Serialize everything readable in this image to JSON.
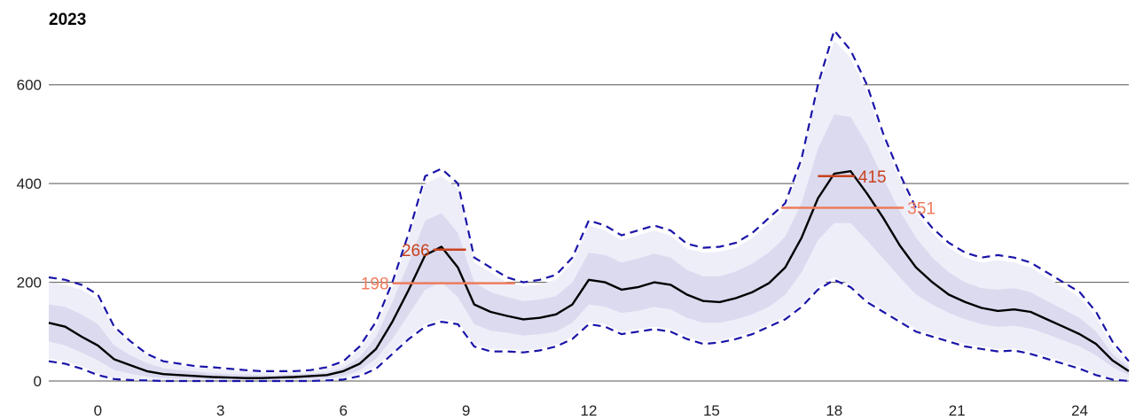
{
  "chart_data": {
    "type": "line",
    "title": "2023",
    "xlabel": "",
    "ylabel": "",
    "xlim": [
      -1.2,
      25.2
    ],
    "ylim": [
      0,
      700
    ],
    "x_ticks": [
      0,
      3,
      6,
      9,
      12,
      15,
      18,
      21,
      24
    ],
    "y_ticks": [
      0,
      200,
      400,
      600
    ],
    "grid": "horizontal",
    "legend": "none",
    "colors": {
      "median": "#000000",
      "outer_band": "#eeeef9",
      "inner_band": "#dcdaef",
      "dashed_bounds": "#1a14a8",
      "annotation_dark": "#c8411c",
      "annotation_light": "#ef7b5c"
    },
    "x": [
      -1.2,
      -0.8,
      -0.4,
      0,
      0.4,
      0.8,
      1.2,
      1.6,
      2,
      2.4,
      2.8,
      3.2,
      3.6,
      4,
      4.4,
      4.8,
      5.2,
      5.6,
      6,
      6.4,
      6.8,
      7.2,
      7.6,
      8,
      8.4,
      8.8,
      9.2,
      9.6,
      10,
      10.4,
      10.8,
      11.2,
      11.6,
      12,
      12.4,
      12.8,
      13.2,
      13.6,
      14,
      14.4,
      14.8,
      15.2,
      15.6,
      16,
      16.4,
      16.8,
      17.2,
      17.6,
      18,
      18.4,
      18.8,
      19.2,
      19.6,
      20,
      20.4,
      20.8,
      21.2,
      21.6,
      22,
      22.4,
      22.8,
      23.2,
      23.6,
      24,
      24.4,
      24.8,
      25.2
    ],
    "series": [
      {
        "role": "median",
        "values": [
          118,
          110,
          90,
          72,
          44,
          32,
          20,
          14,
          12,
          10,
          8,
          7,
          6,
          6,
          7,
          8,
          10,
          12,
          20,
          35,
          65,
          120,
          185,
          255,
          272,
          230,
          155,
          140,
          132,
          125,
          128,
          135,
          155,
          205,
          200,
          185,
          190,
          200,
          195,
          175,
          162,
          160,
          168,
          180,
          198,
          230,
          290,
          370,
          420,
          425,
          380,
          330,
          275,
          230,
          200,
          175,
          160,
          148,
          142,
          145,
          140,
          125,
          110,
          95,
          75,
          42,
          20
        ]
      },
      {
        "role": "upper_dashed",
        "values": [
          210,
          205,
          195,
          175,
          110,
          80,
          55,
          40,
          35,
          30,
          28,
          25,
          22,
          20,
          20,
          20,
          22,
          28,
          40,
          70,
          120,
          200,
          300,
          415,
          430,
          400,
          250,
          230,
          210,
          200,
          205,
          215,
          250,
          325,
          315,
          295,
          305,
          315,
          305,
          278,
          270,
          272,
          280,
          300,
          330,
          360,
          450,
          600,
          710,
          670,
          600,
          500,
          420,
          350,
          310,
          280,
          260,
          250,
          255,
          250,
          240,
          220,
          200,
          180,
          140,
          80,
          40
        ]
      },
      {
        "role": "lower_dashed",
        "values": [
          40,
          35,
          25,
          12,
          4,
          2,
          1,
          0,
          0,
          0,
          0,
          0,
          0,
          0,
          0,
          0,
          0,
          1,
          3,
          10,
          25,
          55,
          85,
          110,
          120,
          115,
          70,
          60,
          60,
          58,
          62,
          70,
          85,
          115,
          110,
          95,
          100,
          105,
          100,
          85,
          75,
          78,
          85,
          95,
          110,
          125,
          150,
          185,
          205,
          190,
          160,
          140,
          120,
          100,
          90,
          80,
          70,
          65,
          60,
          62,
          55,
          45,
          35,
          25,
          12,
          3,
          0
        ]
      },
      {
        "role": "outer_band_upper",
        "values": [
          200,
          195,
          185,
          165,
          105,
          75,
          52,
          38,
          32,
          28,
          25,
          22,
          20,
          18,
          18,
          18,
          20,
          25,
          35,
          65,
          110,
          190,
          290,
          400,
          415,
          390,
          240,
          220,
          200,
          192,
          196,
          205,
          240,
          315,
          305,
          285,
          295,
          305,
          295,
          268,
          260,
          262,
          270,
          290,
          320,
          350,
          440,
          590,
          690,
          655,
          585,
          490,
          410,
          340,
          300,
          270,
          250,
          240,
          245,
          240,
          230,
          210,
          190,
          170,
          130,
          70,
          35
        ]
      },
      {
        "role": "outer_band_lower",
        "values": [
          45,
          40,
          30,
          15,
          5,
          3,
          2,
          1,
          1,
          1,
          1,
          1,
          1,
          1,
          1,
          1,
          1,
          2,
          5,
          15,
          30,
          60,
          90,
          115,
          125,
          120,
          75,
          65,
          65,
          62,
          66,
          74,
          90,
          120,
          115,
          100,
          105,
          110,
          105,
          90,
          80,
          82,
          90,
          100,
          115,
          130,
          155,
          190,
          210,
          195,
          165,
          145,
          125,
          105,
          95,
          85,
          75,
          70,
          65,
          66,
          60,
          50,
          40,
          30,
          15,
          5,
          2
        ]
      },
      {
        "role": "inner_band_upper",
        "values": [
          155,
          150,
          135,
          115,
          72,
          52,
          36,
          26,
          22,
          19,
          16,
          14,
          13,
          12,
          12,
          13,
          15,
          18,
          27,
          48,
          90,
          160,
          240,
          325,
          340,
          300,
          200,
          180,
          170,
          162,
          165,
          172,
          200,
          260,
          255,
          240,
          248,
          258,
          250,
          225,
          212,
          212,
          222,
          238,
          260,
          292,
          360,
          470,
          540,
          535,
          480,
          410,
          345,
          290,
          250,
          220,
          200,
          188,
          185,
          188,
          180,
          162,
          145,
          128,
          100,
          55,
          28
        ]
      },
      {
        "role": "inner_band_lower",
        "values": [
          80,
          72,
          58,
          42,
          22,
          15,
          9,
          6,
          5,
          4,
          3,
          3,
          3,
          3,
          3,
          3,
          4,
          5,
          10,
          22,
          45,
          85,
          135,
          185,
          200,
          170,
          115,
          102,
          98,
          92,
          95,
          100,
          118,
          155,
          150,
          138,
          142,
          150,
          145,
          128,
          118,
          118,
          125,
          135,
          150,
          175,
          220,
          285,
          320,
          320,
          285,
          248,
          210,
          175,
          155,
          138,
          125,
          115,
          110,
          112,
          106,
          95,
          82,
          70,
          52,
          28,
          12
        ]
      }
    ],
    "annotations": [
      {
        "label": "266",
        "value": 266,
        "x_start": 8.2,
        "x_end": 9.0,
        "label_side": "left",
        "tone": "dark"
      },
      {
        "label": "198",
        "value": 198,
        "x_start": 7.2,
        "x_end": 10.2,
        "label_side": "left",
        "tone": "light"
      },
      {
        "label": "415",
        "value": 415,
        "x_start": 17.6,
        "x_end": 18.5,
        "label_side": "right",
        "tone": "dark"
      },
      {
        "label": "351",
        "value": 351,
        "x_start": 16.7,
        "x_end": 19.7,
        "label_side": "right",
        "tone": "light"
      }
    ]
  }
}
